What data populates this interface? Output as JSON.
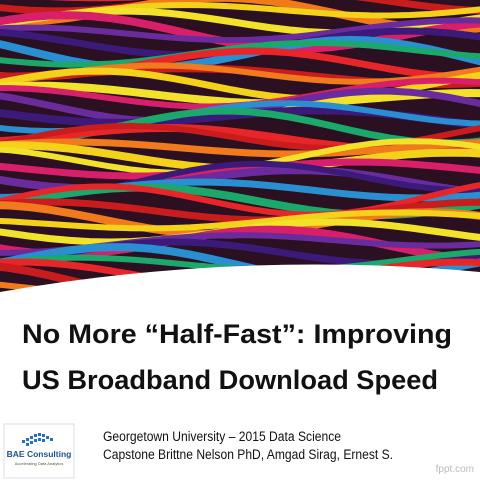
{
  "slide": {
    "title": [
      "No More “Half-Fast”: Improving",
      "US Broadband Download Speed"
    ],
    "subtitle": [
      "Georgetown University – 2015 Data Science",
      "Capstone Brittne Nelson PhD, Amgad Sirag, Ernest S."
    ],
    "logo": {
      "name": "BAE Consulting",
      "tagline": "Accelerating Data Analytics"
    },
    "watermark": "fppt.com"
  }
}
